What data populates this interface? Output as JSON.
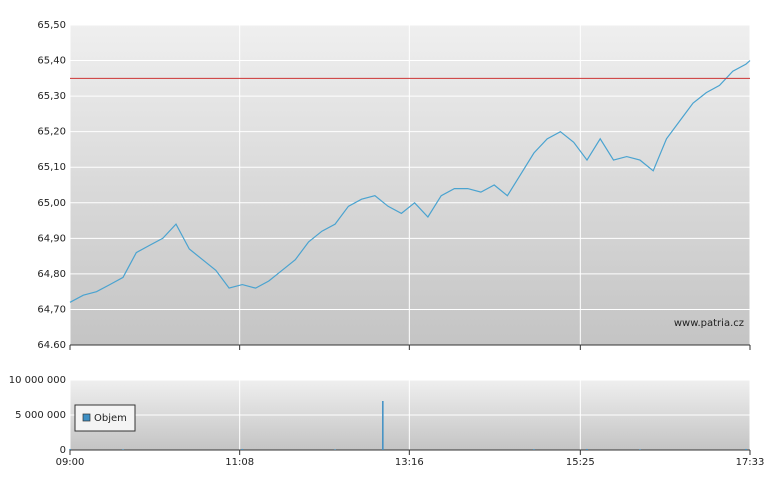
{
  "chart_data": [
    {
      "type": "line",
      "color": "#4aa3d0",
      "x": [
        "09:00",
        "09:10",
        "09:20",
        "09:30",
        "09:40",
        "09:50",
        "10:00",
        "10:10",
        "10:20",
        "10:30",
        "10:40",
        "10:50",
        "11:00",
        "11:10",
        "11:20",
        "11:30",
        "11:40",
        "11:50",
        "12:00",
        "12:10",
        "12:20",
        "12:30",
        "12:40",
        "12:50",
        "13:00",
        "13:10",
        "13:20",
        "13:30",
        "13:40",
        "13:50",
        "14:00",
        "14:10",
        "14:20",
        "14:30",
        "14:40",
        "14:50",
        "15:00",
        "15:10",
        "15:20",
        "15:30",
        "15:40",
        "15:50",
        "16:00",
        "16:10",
        "16:20",
        "16:30",
        "16:40",
        "16:50",
        "17:00",
        "17:10",
        "17:20",
        "17:30",
        "17:33"
      ],
      "values": [
        64.72,
        64.74,
        64.75,
        64.77,
        64.79,
        64.86,
        64.88,
        64.9,
        64.94,
        64.87,
        64.84,
        64.81,
        64.76,
        64.77,
        64.76,
        64.78,
        64.81,
        64.84,
        64.89,
        64.92,
        64.94,
        64.99,
        65.01,
        65.02,
        64.99,
        64.97,
        65.0,
        64.96,
        65.02,
        65.04,
        65.04,
        65.03,
        65.05,
        65.02,
        65.08,
        65.14,
        65.18,
        65.2,
        65.17,
        65.12,
        65.18,
        65.12,
        65.13,
        65.12,
        65.09,
        65.18,
        65.23,
        65.28,
        65.31,
        65.33,
        65.37,
        65.39,
        65.4
      ],
      "reference_line": 65.35,
      "reference_color": "#cc3333",
      "xlim": [
        "09:00",
        "17:33"
      ],
      "ylim": [
        64.6,
        65.5
      ],
      "yticks": [
        {
          "value": 64.6,
          "label": "64.60"
        },
        {
          "value": 64.7,
          "label": "64,70"
        },
        {
          "value": 64.8,
          "label": "64,80"
        },
        {
          "value": 64.9,
          "label": "64,90"
        },
        {
          "value": 65.0,
          "label": "65,00"
        },
        {
          "value": 65.1,
          "label": "65,10"
        },
        {
          "value": 65.2,
          "label": "65,20"
        },
        {
          "value": 65.3,
          "label": "65,30"
        },
        {
          "value": 65.4,
          "label": "65,40"
        },
        {
          "value": 65.5,
          "label": "65,50"
        }
      ],
      "grid": true,
      "watermark": "www.patria.cz"
    },
    {
      "type": "bar",
      "x": [
        "09:00",
        "09:40",
        "11:10",
        "12:20",
        "12:56",
        "14:50",
        "15:30",
        "16:10",
        "17:30"
      ],
      "series": [
        {
          "name": "Objem",
          "color": "#3d8fc4",
          "values": [
            150000,
            100000,
            150000,
            100000,
            7000000,
            120000,
            150000,
            100000,
            150000
          ]
        }
      ],
      "xlim": [
        "09:00",
        "17:33"
      ],
      "xticks": [
        "09:00",
        "11:08",
        "13:16",
        "15:25",
        "17:33"
      ],
      "ylim": [
        0,
        10000000
      ],
      "yticks": [
        0,
        {
          "value": 5000000,
          "label": "5 000 000"
        },
        {
          "value": 10000000,
          "label": "10 000 000"
        }
      ],
      "grid": true,
      "legend": "bottom-left"
    }
  ]
}
